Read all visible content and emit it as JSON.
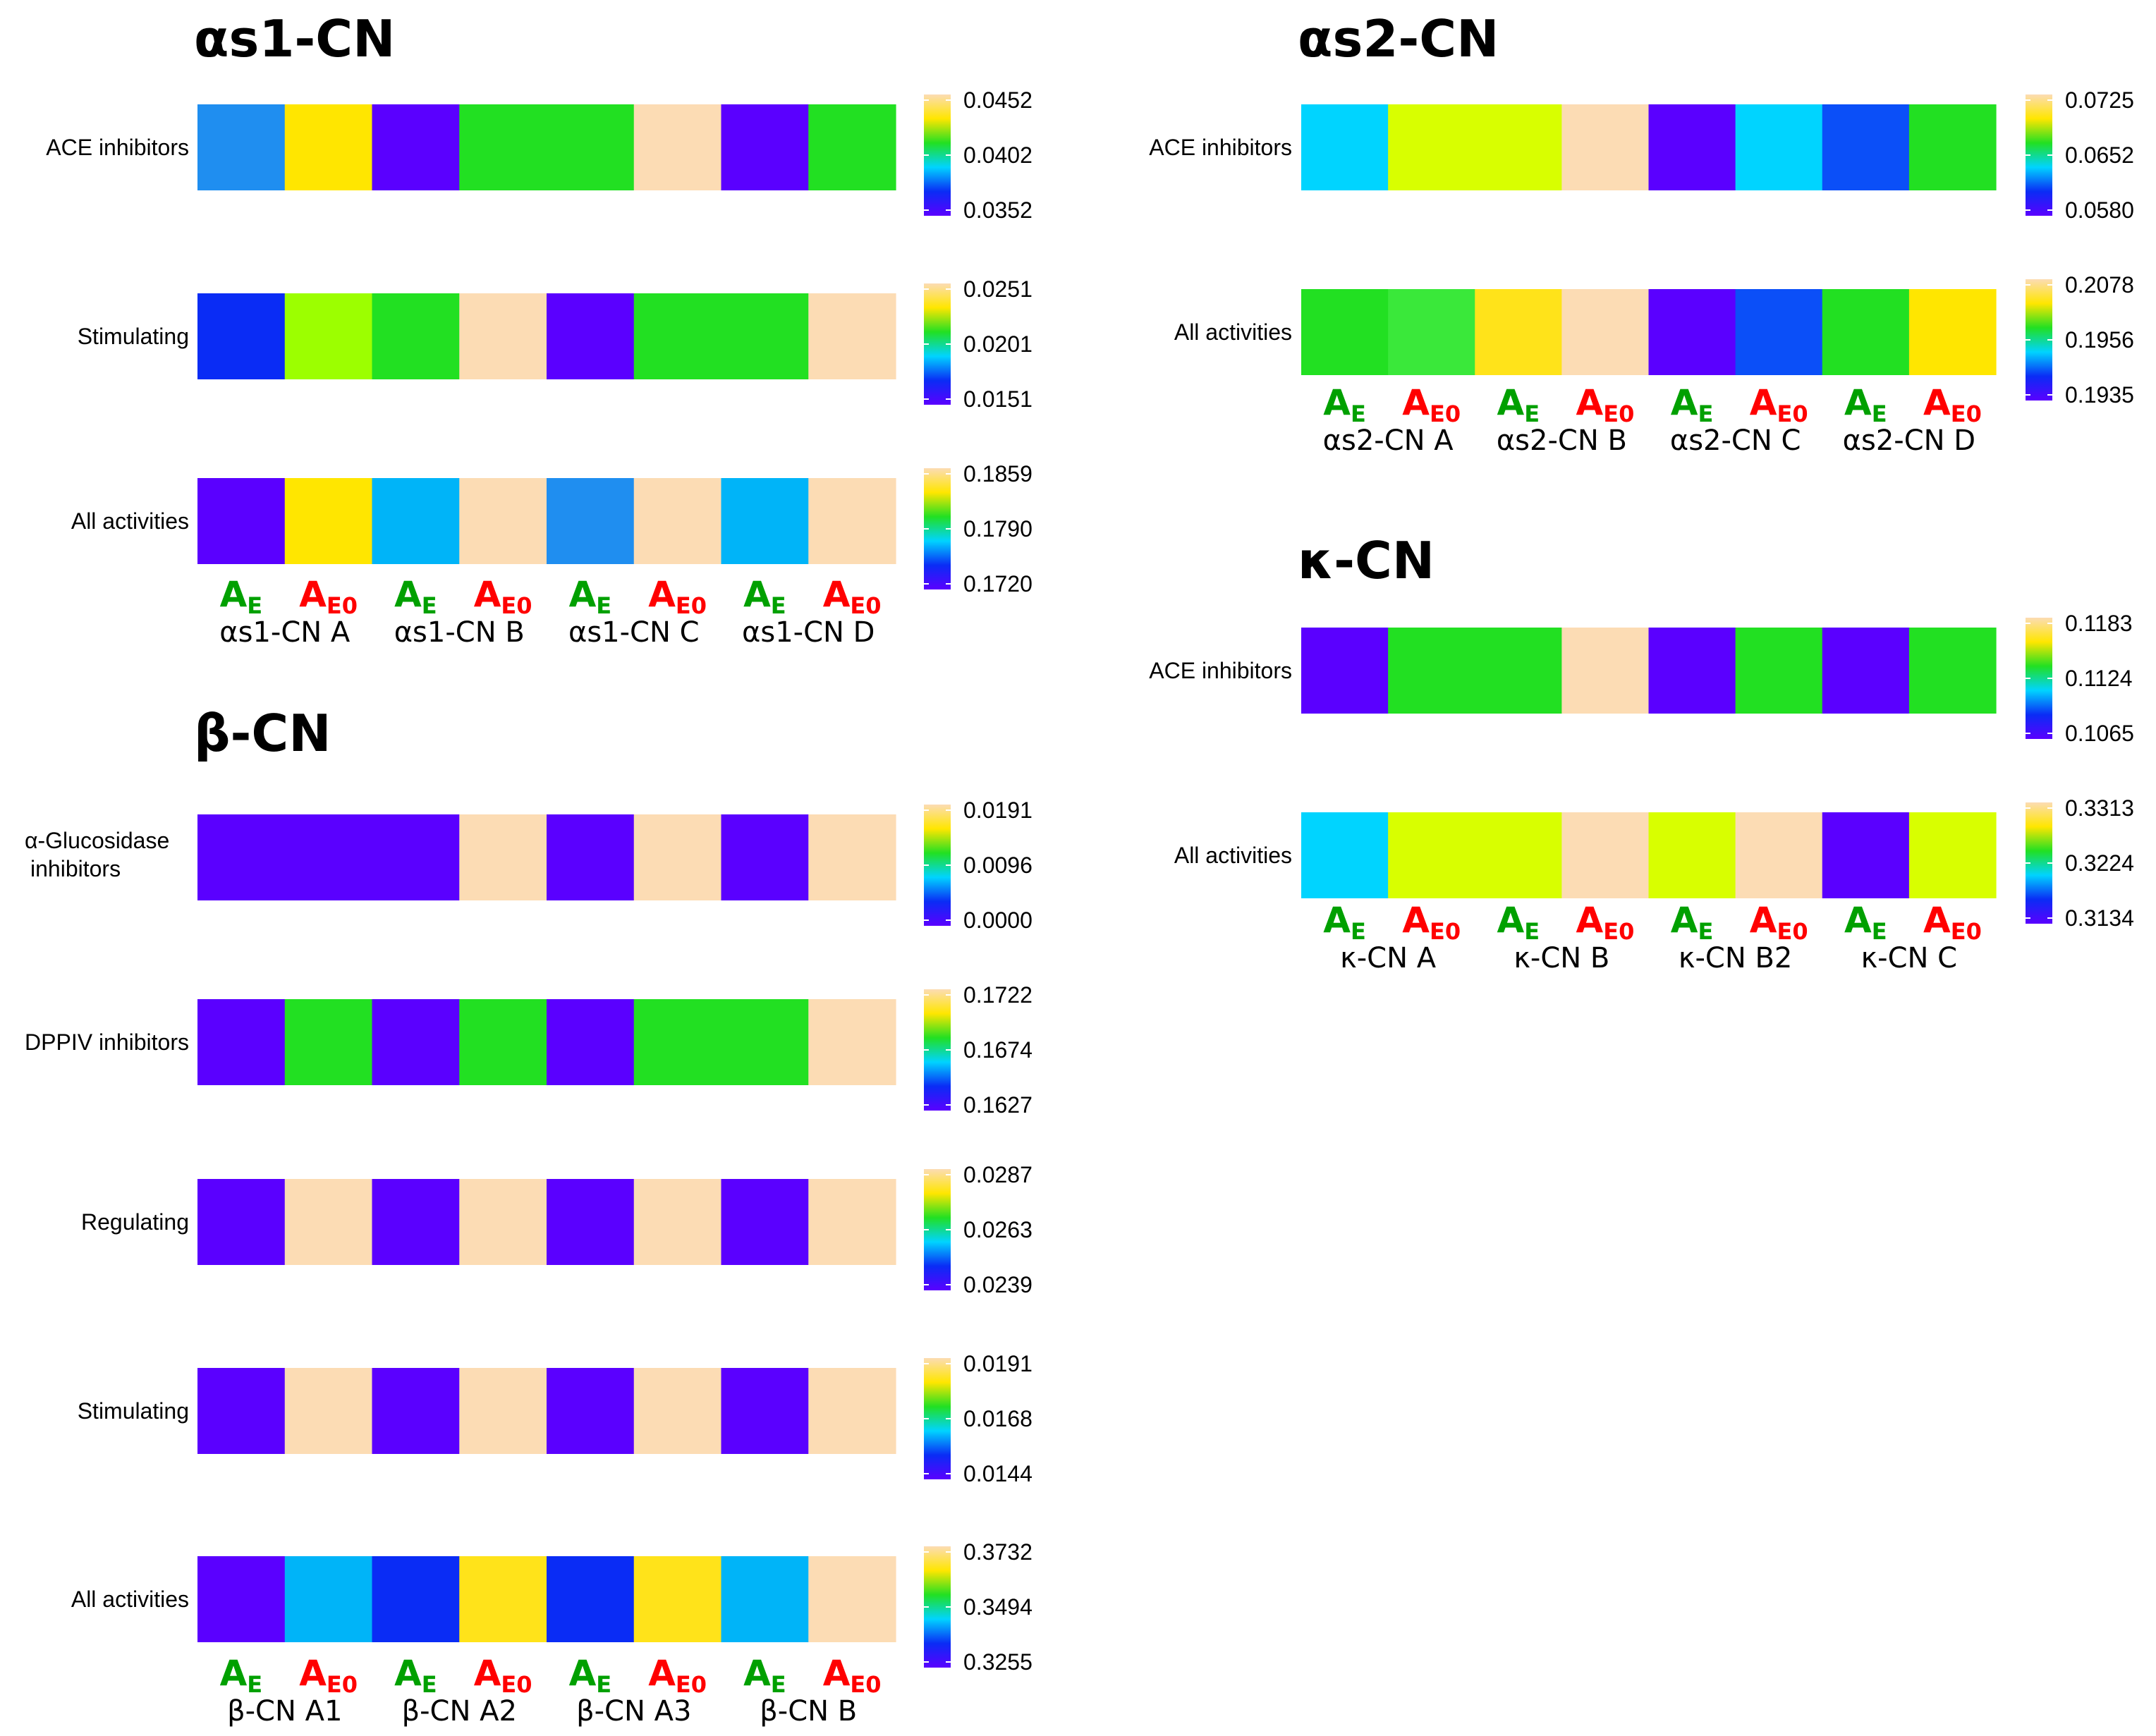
{
  "colors": {
    "purple": "#5a00ff",
    "blue": "#0a2cf5",
    "royal": "#0b4ff8",
    "sky": "#1f8ef0",
    "azure": "#00b4f8",
    "cyan": "#00d4ff",
    "green": "#22e022",
    "green2": "#3ae83a",
    "lime": "#9cff00",
    "chartreuse": "#d8ff00",
    "gold": "#ffe31a",
    "yellow": "#ffe600",
    "peach": "#fcdcb4",
    "ae_green": "#00a000",
    "ae_red": "#ff0000"
  },
  "colorbar_gradient": [
    "#fcdcb4",
    "#ffe600",
    "#22e022",
    "#00d4ff",
    "#0a2cf5",
    "#5a00ff"
  ],
  "legend": {
    "ae": "A",
    "ae_sub": "E",
    "ae0": "A",
    "ae0_sub": "E0"
  },
  "chart_data": [
    {
      "type": "heatmap",
      "title": "αs1-CN",
      "groups": [
        "αs1-CN A",
        "αs1-CN B",
        "αs1-CN C",
        "αs1-CN D"
      ],
      "rows": [
        {
          "label": "ACE inhibitors",
          "colors": [
            "sky",
            "yellow",
            "purple",
            "green",
            "green",
            "peach",
            "purple",
            "green"
          ],
          "ticks": [
            "0.0452",
            "0.0402",
            "0.0352"
          ]
        },
        {
          "label": "Stimulating",
          "colors": [
            "blue",
            "lime",
            "green",
            "peach",
            "purple",
            "green",
            "green",
            "peach"
          ],
          "ticks": [
            "0.0251",
            "0.0201",
            "0.0151"
          ]
        },
        {
          "label": "All activities",
          "colors": [
            "purple",
            "yellow",
            "azure",
            "peach",
            "sky",
            "peach",
            "azure",
            "peach"
          ],
          "ticks": [
            "0.1859",
            "0.1790",
            "0.1720"
          ]
        }
      ]
    },
    {
      "type": "heatmap",
      "title": "β-CN",
      "groups": [
        "β-CN A1",
        "β-CN A2",
        "β-CN A3",
        "β-CN B"
      ],
      "rows": [
        {
          "label": "α-Glucosidase inhibitors",
          "label_lines": [
            "α-Glucosidase",
            "inhibitors"
          ],
          "colors": [
            "purple",
            "purple",
            "purple",
            "peach",
            "purple",
            "peach",
            "purple",
            "peach"
          ],
          "ticks": [
            "0.0191",
            "0.0096",
            "0.0000"
          ]
        },
        {
          "label": "DPPIV inhibitors",
          "colors": [
            "purple",
            "green",
            "purple",
            "green",
            "purple",
            "green",
            "green",
            "peach"
          ],
          "ticks": [
            "0.1722",
            "0.1674",
            "0.1627"
          ]
        },
        {
          "label": "Regulating",
          "colors": [
            "purple",
            "peach",
            "purple",
            "peach",
            "purple",
            "peach",
            "purple",
            "peach"
          ],
          "ticks": [
            "0.0287",
            "0.0263",
            "0.0239"
          ]
        },
        {
          "label": "Stimulating",
          "colors": [
            "purple",
            "peach",
            "purple",
            "peach",
            "purple",
            "peach",
            "purple",
            "peach"
          ],
          "ticks": [
            "0.0191",
            "0.0168",
            "0.0144"
          ]
        },
        {
          "label": "All activities",
          "colors": [
            "purple",
            "azure",
            "blue",
            "gold",
            "blue",
            "gold",
            "azure",
            "peach"
          ],
          "ticks": [
            "0.3732",
            "0.3494",
            "0.3255"
          ]
        }
      ]
    },
    {
      "type": "heatmap",
      "title": "αs2-CN",
      "groups": [
        "αs2-CN A",
        "αs2-CN B",
        "αs2-CN C",
        "αs2-CN D"
      ],
      "rows": [
        {
          "label": "ACE inhibitors",
          "colors": [
            "cyan",
            "chartreuse",
            "chartreuse",
            "peach",
            "purple",
            "cyan",
            "royal",
            "green"
          ],
          "ticks": [
            "0.0725",
            "0.0652",
            "0.0580"
          ]
        },
        {
          "label": "All activities",
          "colors": [
            "green",
            "green2",
            "gold",
            "peach",
            "purple",
            "royal",
            "green",
            "yellow"
          ],
          "ticks": [
            "0.2078",
            "0.1956",
            "0.1935"
          ]
        }
      ]
    },
    {
      "type": "heatmap",
      "title": "κ-CN",
      "groups": [
        "κ-CN A",
        "κ-CN B",
        "κ-CN B2",
        "κ-CN C"
      ],
      "rows": [
        {
          "label": "ACE inhibitors",
          "colors": [
            "purple",
            "green",
            "green",
            "peach",
            "purple",
            "green",
            "purple",
            "green"
          ],
          "ticks": [
            "0.1183",
            "0.1124",
            "0.1065"
          ]
        },
        {
          "label": "All activities",
          "colors": [
            "cyan",
            "chartreuse",
            "chartreuse",
            "peach",
            "chartreuse",
            "peach",
            "purple",
            "chartreuse"
          ],
          "ticks": [
            "0.3313",
            "0.3224",
            "0.3134"
          ]
        }
      ]
    }
  ]
}
